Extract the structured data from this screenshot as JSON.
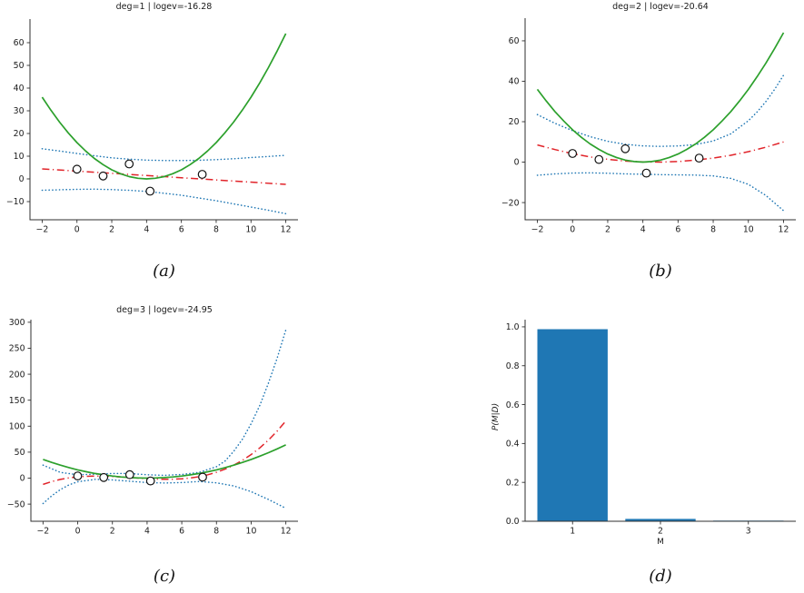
{
  "figure": {
    "background": "#ffffff"
  },
  "chart_data": [
    {
      "id": "a",
      "type": "line",
      "title": "deg=1 | logev=-16.28",
      "caption": "(a)",
      "xlim": [
        -2.7,
        12.7
      ],
      "ylim": [
        -18,
        70.4
      ],
      "xtick_vals": [
        -2,
        0,
        2,
        4,
        6,
        8,
        10,
        12
      ],
      "xtick_labels": [
        "−2",
        "0",
        "2",
        "4",
        "6",
        "8",
        "10",
        "12"
      ],
      "ytick_vals": [
        -10,
        0,
        10,
        20,
        30,
        40,
        50,
        60
      ],
      "ytick_labels": [
        "−10",
        "0",
        "10",
        "20",
        "30",
        "40",
        "50",
        "60"
      ],
      "series": [
        {
          "name": "credible-band-upper",
          "color": "#1f77b4",
          "style": "dotted",
          "width": 1.5,
          "x": [
            -2,
            -1,
            0,
            1,
            2,
            3,
            4,
            5,
            6,
            7,
            8,
            9,
            10,
            11,
            12
          ],
          "y": [
            13.3,
            12.3,
            11.2,
            10.2,
            9.3,
            8.7,
            8.3,
            8.1,
            8.1,
            8.2,
            8.5,
            8.9,
            9.4,
            9.9,
            10.4
          ]
        },
        {
          "name": "credible-band-lower",
          "color": "#1f77b4",
          "style": "dotted",
          "width": 1.5,
          "x": [
            -2,
            -1,
            0,
            1,
            2,
            3,
            4,
            5,
            6,
            7,
            8,
            9,
            10,
            11,
            12
          ],
          "y": [
            -5.0,
            -4.8,
            -4.6,
            -4.5,
            -4.7,
            -5.0,
            -5.5,
            -6.3,
            -7.2,
            -8.4,
            -9.6,
            -11.0,
            -12.4,
            -13.8,
            -15.3
          ]
        },
        {
          "name": "fit-mean",
          "color": "#e1242a",
          "style": "dashdot",
          "width": 1.5,
          "x": [
            -2,
            12
          ],
          "y": [
            4.4,
            -2.4
          ]
        },
        {
          "name": "true-function",
          "color": "#2ca02c",
          "style": "solid",
          "width": 1.7,
          "x": [
            -2,
            -1.5,
            -1,
            -0.5,
            0,
            0.5,
            1,
            1.5,
            2,
            2.5,
            3,
            3.5,
            4,
            4.5,
            5,
            5.5,
            6,
            6.5,
            7,
            7.5,
            8,
            8.5,
            9,
            9.5,
            10,
            10.5,
            11,
            11.5,
            12
          ],
          "y": [
            36,
            30.3,
            25,
            20.3,
            16,
            12.3,
            9,
            6.3,
            4,
            2.3,
            1,
            0.3,
            0,
            0.3,
            1,
            2.3,
            4,
            6.3,
            9,
            12.3,
            16,
            20.3,
            25,
            30.3,
            36,
            42.3,
            49,
            56.3,
            64
          ]
        }
      ],
      "points": {
        "x": [
          0,
          1.5,
          3,
          4.2,
          7.2
        ],
        "y": [
          4.3,
          1.3,
          6.6,
          -5.4,
          2.0
        ]
      }
    },
    {
      "id": "b",
      "type": "line",
      "title": "deg=2 | logev=-20.64",
      "caption": "(b)",
      "xlim": [
        -2.7,
        12.7
      ],
      "ylim": [
        -28.5,
        71.2
      ],
      "xtick_vals": [
        -2,
        0,
        2,
        4,
        6,
        8,
        10,
        12
      ],
      "xtick_labels": [
        "−2",
        "0",
        "2",
        "4",
        "6",
        "8",
        "10",
        "12"
      ],
      "ytick_vals": [
        -20,
        0,
        20,
        40,
        60
      ],
      "ytick_labels": [
        "−20",
        "0",
        "20",
        "40",
        "60"
      ],
      "series": [
        {
          "name": "credible-band-upper",
          "color": "#1f77b4",
          "style": "dotted",
          "width": 1.5,
          "x": [
            -2,
            -1,
            0,
            1,
            2,
            3,
            4,
            5,
            6,
            7,
            8,
            9,
            10,
            10.5,
            11,
            11.5,
            12
          ],
          "y": [
            23.5,
            19.2,
            15.6,
            12.6,
            10.3,
            8.8,
            8.0,
            7.8,
            8.0,
            8.7,
            10.5,
            14.0,
            20.5,
            24.8,
            30.0,
            36.1,
            43.0
          ]
        },
        {
          "name": "credible-band-lower",
          "color": "#1f77b4",
          "style": "dotted",
          "width": 1.5,
          "x": [
            -2,
            -1,
            0,
            1,
            2,
            3,
            4,
            5,
            6,
            7,
            8,
            9,
            10,
            11,
            12
          ],
          "y": [
            -6.5,
            -5.8,
            -5.4,
            -5.3,
            -5.5,
            -5.8,
            -6.0,
            -6.2,
            -6.3,
            -6.4,
            -6.8,
            -8.0,
            -11.0,
            -16.5,
            -24.0
          ]
        },
        {
          "name": "fit-mean",
          "color": "#e1242a",
          "style": "dashdot",
          "width": 1.5,
          "x": [
            -2,
            -1,
            0,
            1,
            2,
            3,
            4,
            5,
            6,
            7,
            8,
            9,
            10,
            11,
            12
          ],
          "y": [
            8.5,
            6.2,
            4.2,
            2.6,
            1.4,
            0.5,
            0.1,
            0.0,
            0.3,
            1.0,
            2.0,
            3.4,
            5.2,
            7.4,
            10.0
          ]
        },
        {
          "name": "true-function",
          "color": "#2ca02c",
          "style": "solid",
          "width": 1.7,
          "x": [
            -2,
            -1.5,
            -1,
            -0.5,
            0,
            0.5,
            1,
            1.5,
            2,
            2.5,
            3,
            3.5,
            4,
            4.5,
            5,
            5.5,
            6,
            6.5,
            7,
            7.5,
            8,
            8.5,
            9,
            9.5,
            10,
            10.5,
            11,
            11.5,
            12
          ],
          "y": [
            36,
            30.3,
            25,
            20.3,
            16,
            12.3,
            9,
            6.3,
            4,
            2.3,
            1,
            0.3,
            0,
            0.3,
            1,
            2.3,
            4,
            6.3,
            9,
            12.3,
            16,
            20.3,
            25,
            30.3,
            36,
            42.3,
            49,
            56.3,
            64
          ]
        }
      ],
      "points": {
        "x": [
          0,
          1.5,
          3,
          4.2,
          7.2
        ],
        "y": [
          4.3,
          1.3,
          6.6,
          -5.4,
          2.0
        ]
      }
    },
    {
      "id": "c",
      "type": "line",
      "title": "deg=3 | logev=-24.95",
      "caption": "(c)",
      "xlim": [
        -2.7,
        12.7
      ],
      "ylim": [
        -83,
        305
      ],
      "xtick_vals": [
        -2,
        0,
        2,
        4,
        6,
        8,
        10,
        12
      ],
      "xtick_labels": [
        "−2",
        "0",
        "2",
        "4",
        "6",
        "8",
        "10",
        "12"
      ],
      "ytick_vals": [
        -50,
        0,
        50,
        100,
        150,
        200,
        250,
        300
      ],
      "ytick_labels": [
        "−50",
        "0",
        "50",
        "100",
        "150",
        "200",
        "250",
        "300"
      ],
      "series": [
        {
          "name": "credible-band-upper",
          "color": "#1f77b4",
          "style": "dotted",
          "width": 1.5,
          "x": [
            -2,
            -1,
            0,
            1,
            2,
            3,
            4,
            5,
            6,
            7,
            8,
            8.5,
            9,
            9.5,
            10,
            10.5,
            11,
            11.5,
            12
          ],
          "y": [
            25,
            11,
            6.5,
            7.5,
            9,
            9,
            6.5,
            5.5,
            7,
            11,
            22,
            33,
            52,
            75,
            105,
            140,
            183,
            231,
            285
          ]
        },
        {
          "name": "credible-band-lower",
          "color": "#1f77b4",
          "style": "dotted",
          "width": 1.5,
          "x": [
            -2,
            -1.5,
            -1,
            -0.5,
            0,
            1,
            2,
            3,
            4,
            5,
            6,
            7,
            8,
            9,
            10,
            11,
            12
          ],
          "y": [
            -49,
            -34,
            -22,
            -13,
            -7,
            -2.5,
            -3.5,
            -6,
            -8.5,
            -9.5,
            -8.5,
            -6.5,
            -9,
            -15,
            -26,
            -41,
            -58
          ]
        },
        {
          "name": "fit-mean",
          "color": "#e1242a",
          "style": "dashdot",
          "width": 1.5,
          "x": [
            -2,
            -1.5,
            -1,
            -0.5,
            0,
            0.5,
            1,
            1.5,
            2,
            2.5,
            3,
            3.5,
            4,
            4.5,
            5,
            5.5,
            6,
            6.5,
            7,
            7.5,
            8,
            8.5,
            9,
            9.5,
            10,
            10.5,
            11,
            11.5,
            12
          ],
          "y": [
            -12.0,
            -6.6,
            -2.5,
            0.5,
            2.5,
            3.6,
            4.0,
            3.8,
            3.2,
            2.3,
            1.2,
            0.0,
            -1.0,
            -1.8,
            -2.2,
            -2.1,
            -1.3,
            0.3,
            2.8,
            6.4,
            11.2,
            17.4,
            25.0,
            34.3,
            45.4,
            58.3,
            73.3,
            90.5,
            110.0
          ]
        },
        {
          "name": "true-function",
          "color": "#2ca02c",
          "style": "solid",
          "width": 1.7,
          "x": [
            -2,
            -1.5,
            -1,
            -0.5,
            0,
            0.5,
            1,
            1.5,
            2,
            2.5,
            3,
            3.5,
            4,
            4.5,
            5,
            5.5,
            6,
            6.5,
            7,
            7.5,
            8,
            8.5,
            9,
            9.5,
            10,
            10.5,
            11,
            11.5,
            12
          ],
          "y": [
            36,
            30.3,
            25,
            20.3,
            16,
            12.3,
            9,
            6.3,
            4,
            2.3,
            1,
            0.3,
            0,
            0.3,
            1,
            2.3,
            4,
            6.3,
            9,
            12.3,
            16,
            20.3,
            25,
            30.3,
            36,
            42.3,
            49,
            56.3,
            64
          ]
        }
      ],
      "points": {
        "x": [
          0,
          1.5,
          3,
          4.2,
          7.2
        ],
        "y": [
          4.3,
          1.3,
          6.6,
          -5.4,
          2.0
        ]
      }
    },
    {
      "id": "d",
      "type": "bar",
      "caption": "(d)",
      "xlabel": "M",
      "ylabel": "P(M|D)",
      "categories": [
        "1",
        "2",
        "3"
      ],
      "values": [
        0.988,
        0.012,
        0.003
      ],
      "bar_positions": [
        1,
        2,
        3
      ],
      "bar_width": 0.8,
      "bar_color": "#1f77b4",
      "xlim": [
        0.46,
        3.54
      ],
      "ylim": [
        0,
        1.037
      ],
      "xtick_vals": [
        1,
        2,
        3
      ],
      "xtick_labels": [
        "1",
        "2",
        "3"
      ],
      "ytick_vals": [
        0,
        0.2,
        0.4,
        0.6,
        0.8,
        1.0
      ],
      "ytick_labels": [
        "0.0",
        "0.2",
        "0.4",
        "0.6",
        "0.8",
        "1.0"
      ]
    }
  ]
}
